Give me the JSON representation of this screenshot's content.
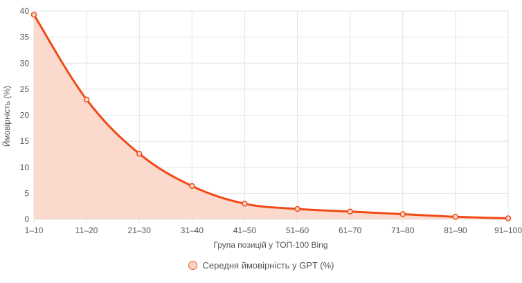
{
  "chart_data": {
    "type": "area",
    "xlabel": "Група позицій у ТОП-100 Bing",
    "ylabel": "Ймовірність (%)",
    "categories": [
      "1–10",
      "11–20",
      "21–30",
      "31–40",
      "41–50",
      "51–60",
      "61–70",
      "71–80",
      "81–90",
      "91–100"
    ],
    "series": [
      {
        "name": "Середня ймовірність у GPT (%)",
        "values": [
          39.3,
          23.0,
          12.6,
          6.4,
          3.0,
          2.0,
          1.5,
          1.0,
          0.5,
          0.2
        ]
      }
    ],
    "ylim": [
      0,
      40
    ],
    "yticks": [
      0,
      5,
      10,
      15,
      20,
      25,
      30,
      35,
      40
    ],
    "grid": true,
    "legend_position": "bottom",
    "colors": {
      "line": "#f04a16",
      "fill": "#fbd5c6",
      "grid": "#e3e3e3"
    }
  }
}
